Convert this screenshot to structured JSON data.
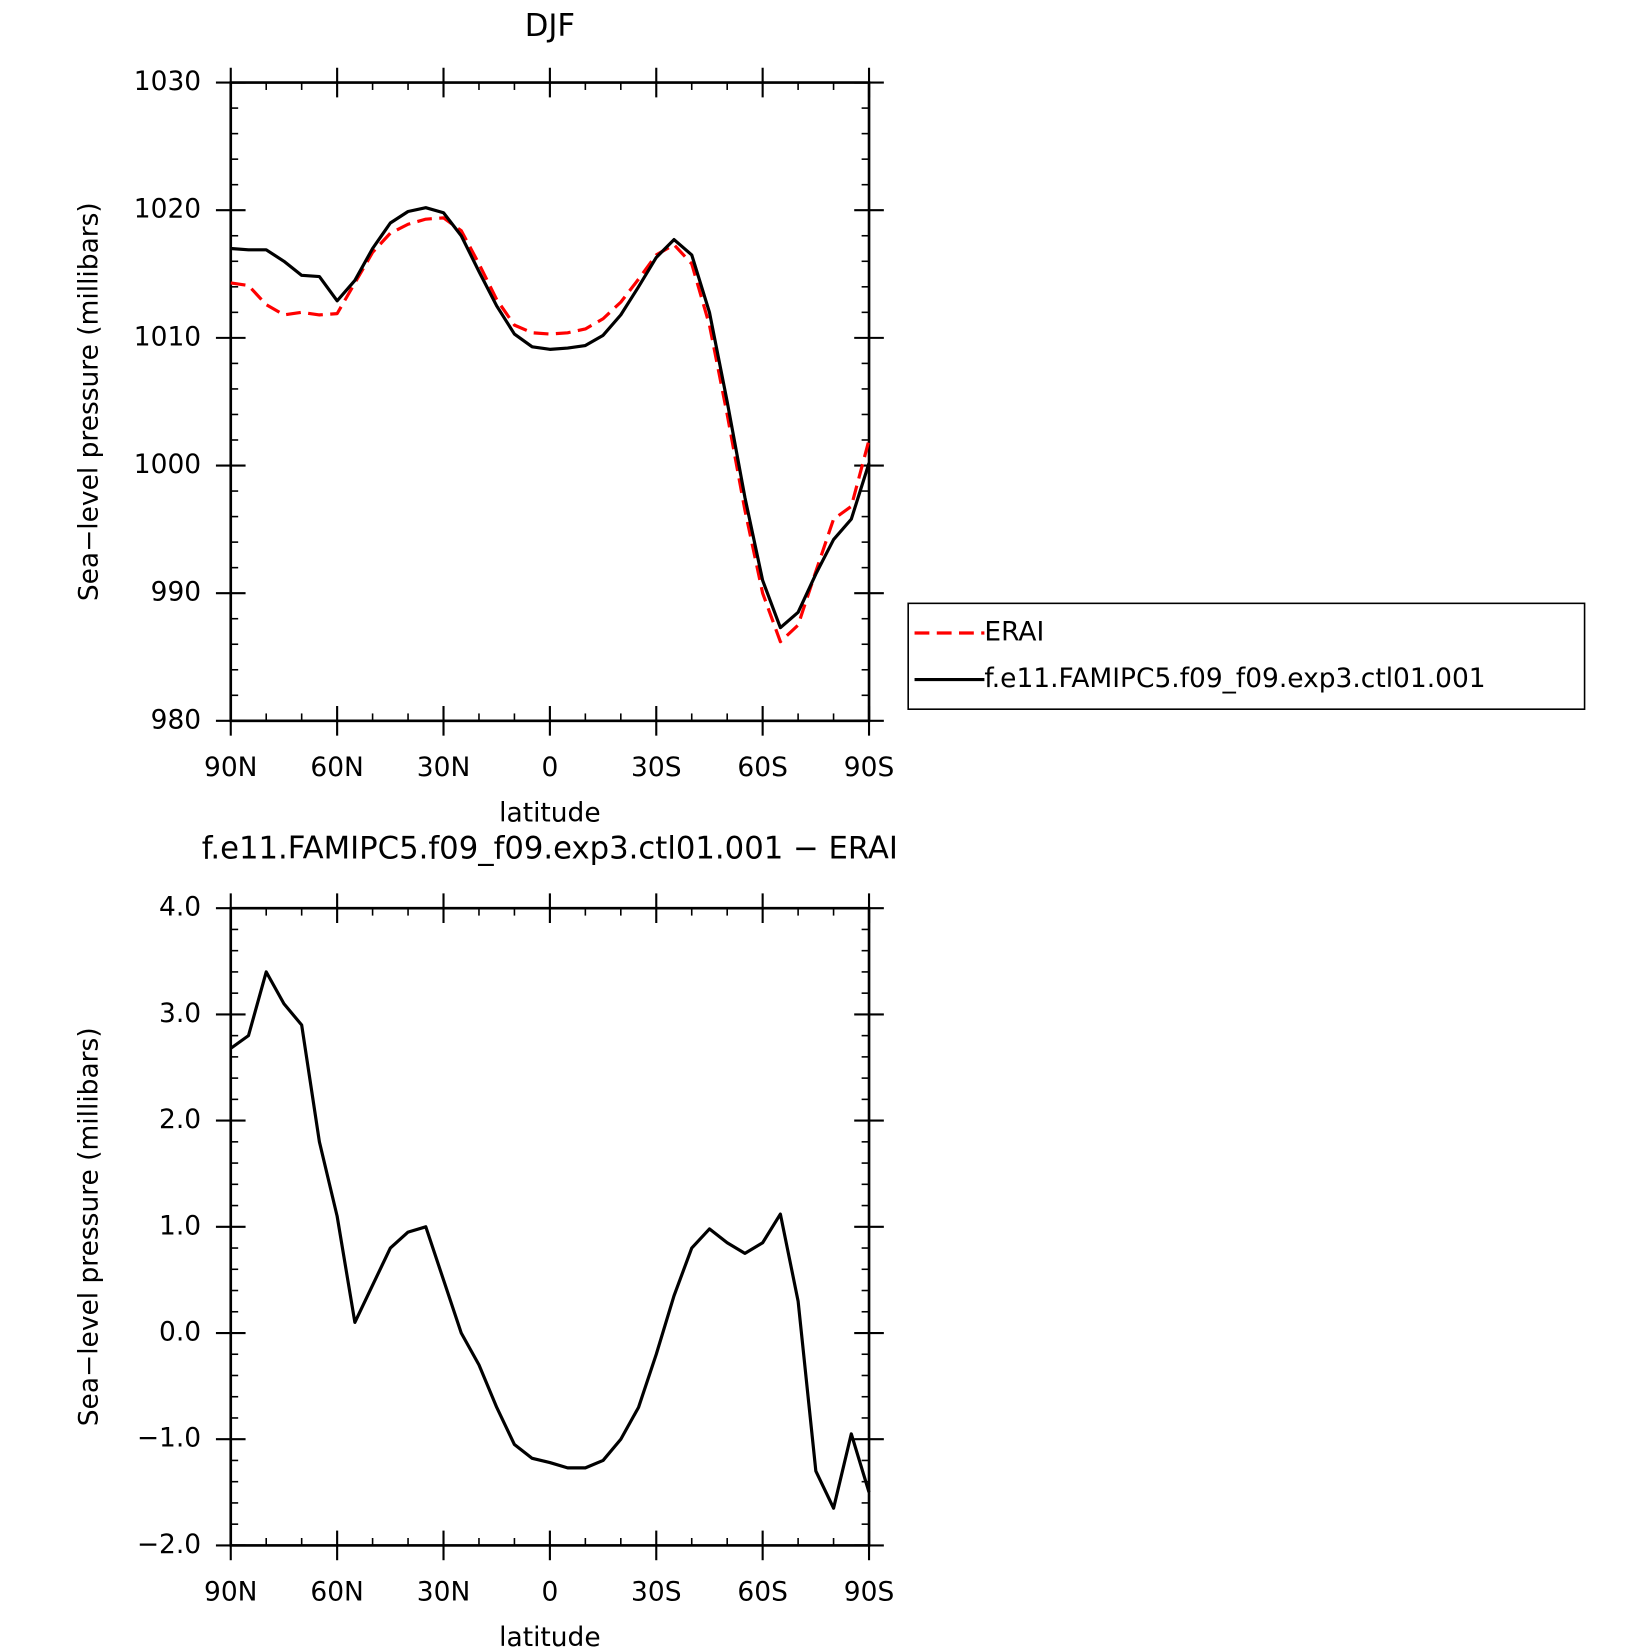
{
  "chart_data": [
    {
      "type": "line",
      "title": "DJF",
      "x_label": "latitude",
      "y_label": "Sea−level pressure (millibars)",
      "x": [
        90,
        85,
        80,
        75,
        70,
        65,
        60,
        55,
        50,
        45,
        40,
        35,
        30,
        25,
        20,
        15,
        10,
        5,
        0,
        -5,
        -10,
        -15,
        -20,
        -25,
        -30,
        -35,
        -40,
        -45,
        -50,
        -55,
        -60,
        -65,
        -70,
        -75,
        -80,
        -85,
        -90
      ],
      "xlim": [
        90,
        -90
      ],
      "xticks": [
        {
          "value": 90,
          "label": "90N"
        },
        {
          "value": 60,
          "label": "60N"
        },
        {
          "value": 30,
          "label": "30N"
        },
        0,
        {
          "value": -30,
          "label": "30S"
        },
        {
          "value": -60,
          "label": "60S"
        },
        {
          "value": -90,
          "label": "90S"
        }
      ],
      "ylim": [
        980,
        1030
      ],
      "yticks": [
        980,
        990,
        1000,
        1010,
        1020,
        1030
      ],
      "legend_position": "right",
      "series": [
        {
          "name": "ERAI",
          "color": "#ff0000",
          "linestyle": "dashed",
          "values": [
            1014.3,
            1014.1,
            1012.6,
            1011.8,
            1012.0,
            1011.8,
            1011.9,
            1014.3,
            1016.7,
            1018.2,
            1018.9,
            1019.3,
            1019.4,
            1018.4,
            1015.8,
            1013.0,
            1011.0,
            1010.4,
            1010.3,
            1010.4,
            1010.7,
            1011.5,
            1012.8,
            1014.6,
            1016.5,
            1017.3,
            1015.8,
            1011.0,
            1004.0,
            996.5,
            990.0,
            986.2,
            987.5,
            991.7,
            995.8,
            996.8,
            1002.0
          ]
        },
        {
          "name": "f.e11.FAMIPC5.f09_f09.exp3.ctl01.001",
          "color": "#000000",
          "linestyle": "solid",
          "values": [
            1017.0,
            1016.9,
            1016.9,
            1016.0,
            1014.9,
            1014.8,
            1012.9,
            1014.5,
            1017.0,
            1019.0,
            1019.9,
            1020.2,
            1019.8,
            1018.0,
            1015.2,
            1012.5,
            1010.3,
            1009.3,
            1009.1,
            1009.2,
            1009.4,
            1010.2,
            1011.8,
            1014.0,
            1016.3,
            1017.7,
            1016.5,
            1012.0,
            1005.0,
            997.5,
            991.0,
            987.3,
            988.5,
            991.5,
            994.2,
            995.8,
            1000.2
          ]
        }
      ]
    },
    {
      "type": "line",
      "title": "f.e11.FAMIPC5.f09_f09.exp3.ctl01.001 − ERAI",
      "x_label": "latitude",
      "y_label": "Sea−level pressure (millibars)",
      "x": [
        90,
        85,
        80,
        75,
        70,
        65,
        60,
        55,
        50,
        45,
        40,
        35,
        30,
        25,
        20,
        15,
        10,
        5,
        0,
        -5,
        -10,
        -15,
        -20,
        -25,
        -30,
        -35,
        -40,
        -45,
        -50,
        -55,
        -60,
        -65,
        -70,
        -75,
        -80,
        -85,
        -90
      ],
      "xlim": [
        90,
        -90
      ],
      "xticks": [
        {
          "value": 90,
          "label": "90N"
        },
        {
          "value": 60,
          "label": "60N"
        },
        {
          "value": 30,
          "label": "30N"
        },
        0,
        {
          "value": -30,
          "label": "30S"
        },
        {
          "value": -60,
          "label": "60S"
        },
        {
          "value": -90,
          "label": "90S"
        }
      ],
      "ylim": [
        -2,
        4
      ],
      "yticks": [
        {
          "value": -2,
          "label": "−2.0"
        },
        {
          "value": -1,
          "label": "−1.0"
        },
        {
          "value": 0,
          "label": "0.0"
        },
        {
          "value": 1,
          "label": "1.0"
        },
        {
          "value": 2,
          "label": "2.0"
        },
        {
          "value": 3,
          "label": "3.0"
        },
        {
          "value": 4,
          "label": "4.0"
        }
      ],
      "series": [
        {
          "color": "#000000",
          "linestyle": "solid",
          "values": [
            2.68,
            2.8,
            3.4,
            3.1,
            2.9,
            1.8,
            1.1,
            0.1,
            0.45,
            0.8,
            0.95,
            1.0,
            0.5,
            0.0,
            -0.3,
            -0.7,
            -1.05,
            -1.18,
            -1.22,
            -1.27,
            -1.27,
            -1.2,
            -1.0,
            -0.7,
            -0.2,
            0.35,
            0.8,
            0.98,
            0.85,
            0.75,
            0.85,
            1.12,
            0.3,
            -1.3,
            -1.65,
            -0.95,
            -1.5
          ]
        }
      ]
    }
  ]
}
